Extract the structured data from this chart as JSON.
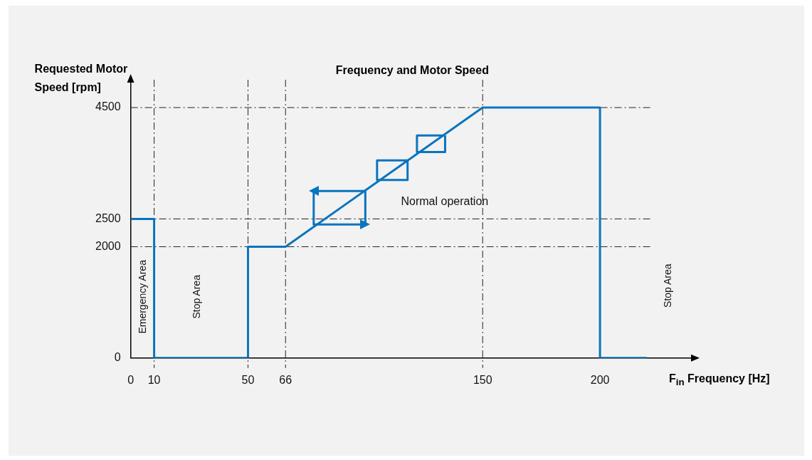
{
  "chart_data": {
    "type": "line",
    "title": "Frequency and Motor Speed",
    "xlabel": "F$_{in}$ Frequency [Hz]",
    "ylabel": "Requested Motor Speed [rpm]",
    "xlim": [
      0,
      240
    ],
    "xticks": [
      0,
      10,
      50,
      66,
      150,
      200
    ],
    "ylim": [
      0,
      5000
    ],
    "yticks": [
      0,
      2000,
      2500,
      4500
    ],
    "grid": false,
    "legend": false,
    "marker": "none",
    "line_style": "solid",
    "series": [
      {
        "color": "#0a74be",
        "x": [
          0,
          10,
          10,
          50,
          50,
          66,
          150,
          200,
          200,
          220
        ],
        "values": [
          2500,
          2500,
          0,
          0,
          2000,
          2000,
          4500,
          4500,
          0,
          0
        ]
      },
      {
        "color": "#0a74be",
        "x": [
          78,
          100,
          100
        ],
        "values": [
          2400,
          2400,
          3000
        ]
      },
      {
        "color": "#0a74be",
        "x": [
          100,
          78,
          78
        ],
        "values": [
          3000,
          3000,
          2400
        ]
      },
      {
        "color": "#0a74be",
        "x": [
          105,
          118,
          118
        ],
        "values": [
          3200,
          3200,
          3550
        ]
      },
      {
        "color": "#0a74be",
        "x": [
          118,
          105,
          105
        ],
        "values": [
          3550,
          3550,
          3200
        ]
      },
      {
        "color": "#0a74be",
        "x": [
          122,
          134,
          134
        ],
        "values": [
          3700,
          3700,
          4000
        ]
      },
      {
        "color": "#0a74be",
        "x": [
          134,
          122,
          122
        ],
        "values": [
          4000,
          4000,
          3700
        ]
      }
    ],
    "ref_lines": [
      {
        "axis": "x",
        "value": 10,
        "color": "#222222",
        "line_style": "dashed"
      },
      {
        "axis": "x",
        "value": 50,
        "color": "#222222",
        "line_style": "dashed"
      },
      {
        "axis": "x",
        "value": 66,
        "color": "#222222",
        "line_style": "dashed"
      },
      {
        "axis": "x",
        "value": 150,
        "color": "#222222",
        "line_style": "dashed"
      },
      {
        "axis": "y",
        "value": 2000,
        "color": "#222222",
        "line_style": "dashed"
      },
      {
        "axis": "y",
        "value": 2500,
        "color": "#222222",
        "line_style": "dashed"
      },
      {
        "axis": "y",
        "value": 4500,
        "color": "#222222",
        "line_style": "dashed"
      }
    ],
    "annotations": [
      "Normal operation",
      "Emergency Area",
      "Stop Area",
      "Stop Area"
    ]
  }
}
